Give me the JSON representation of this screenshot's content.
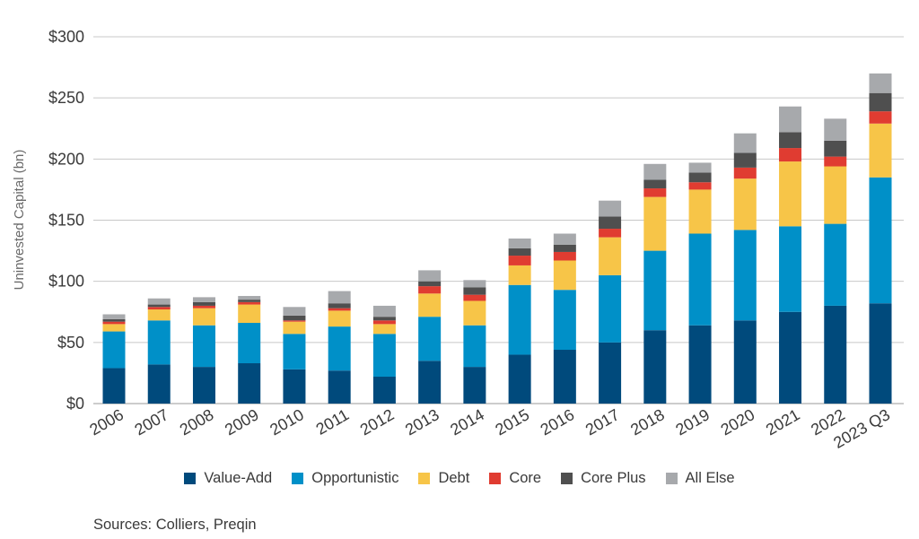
{
  "chart_data": {
    "type": "bar",
    "stacked": true,
    "ylabel": "Uninvested Capital (bn)",
    "ylim": [
      0,
      300
    ],
    "yticks": [
      "$0",
      "$50",
      "$100",
      "$150",
      "$200",
      "$250",
      "$300"
    ],
    "ytick_values": [
      0,
      50,
      100,
      150,
      200,
      250,
      300
    ],
    "grid": true,
    "legend_position": "bottom",
    "categories": [
      "2006",
      "2007",
      "2008",
      "2009",
      "2010",
      "2011",
      "2012",
      "2013",
      "2014",
      "2015",
      "2016",
      "2017",
      "2018",
      "2019",
      "2020",
      "2021",
      "2022",
      "2023 Q3"
    ],
    "series": [
      {
        "name": "Value-Add",
        "color": "#004a7c",
        "values": [
          29,
          32,
          30,
          33,
          28,
          27,
          22,
          35,
          30,
          40,
          44,
          50,
          60,
          64,
          68,
          75,
          80,
          82
        ]
      },
      {
        "name": "Opportunistic",
        "color": "#0090c8",
        "values": [
          30,
          36,
          34,
          33,
          29,
          36,
          35,
          36,
          34,
          57,
          49,
          55,
          65,
          75,
          74,
          70,
          67,
          103
        ]
      },
      {
        "name": "Debt",
        "color": "#f7c548",
        "values": [
          6,
          9,
          14,
          15,
          10,
          13,
          8,
          19,
          20,
          16,
          24,
          31,
          44,
          36,
          42,
          53,
          47,
          44
        ]
      },
      {
        "name": "Core",
        "color": "#e03c31",
        "values": [
          2,
          2,
          2,
          2,
          1,
          2,
          3,
          6,
          5,
          8,
          7,
          7,
          7,
          6,
          9,
          11,
          8,
          10
        ]
      },
      {
        "name": "Core Plus",
        "color": "#4f4f4f",
        "values": [
          2,
          2,
          3,
          2,
          4,
          4,
          3,
          4,
          6,
          6,
          6,
          10,
          7,
          8,
          12,
          13,
          13,
          15
        ]
      },
      {
        "name": "All Else",
        "color": "#a7a9ac",
        "values": [
          4,
          5,
          4,
          3,
          7,
          10,
          9,
          9,
          6,
          8,
          9,
          13,
          13,
          8,
          16,
          21,
          18,
          16
        ]
      }
    ],
    "source": "Sources: Colliers, Preqin"
  }
}
